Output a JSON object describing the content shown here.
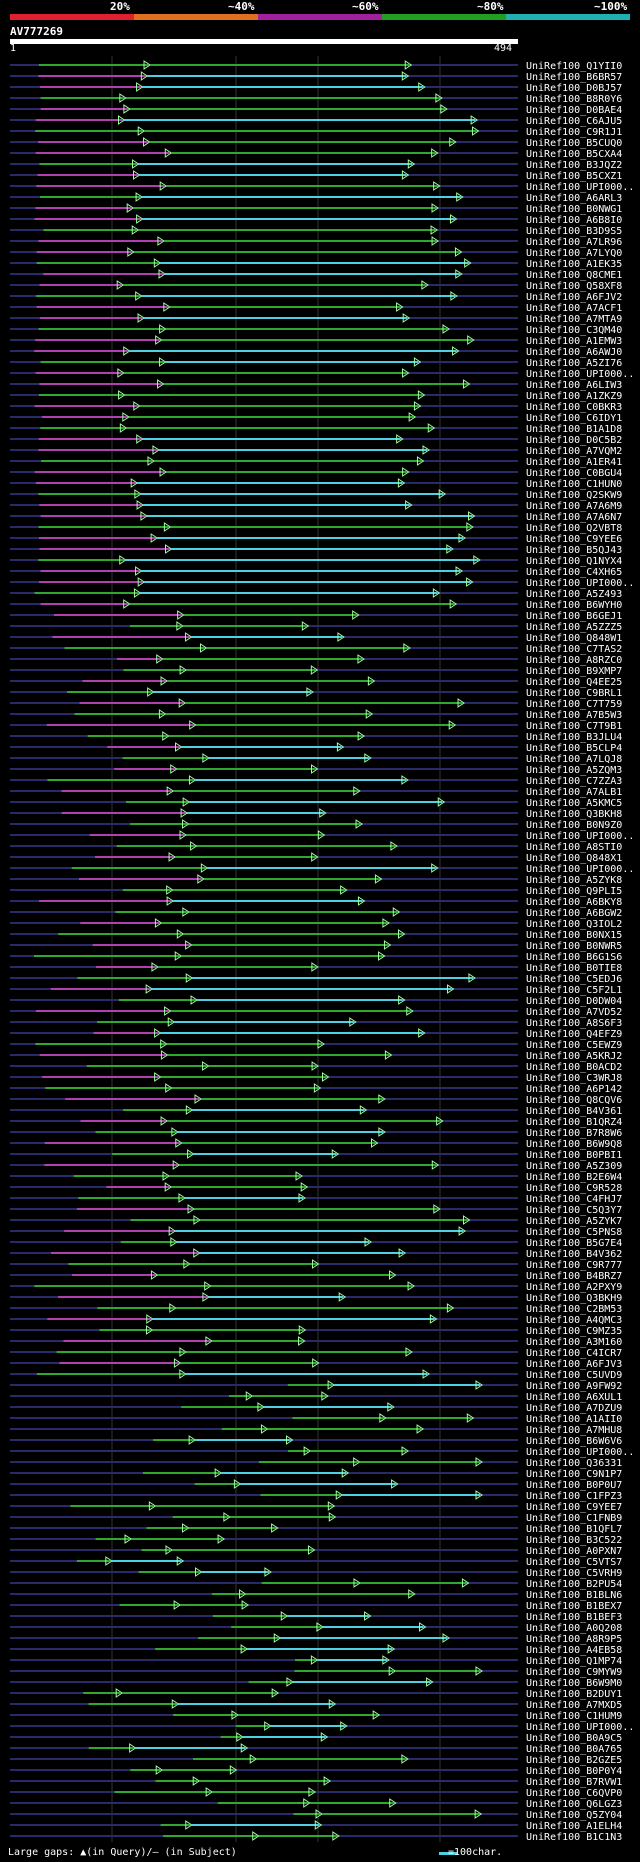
{
  "scale": {
    "labels": [
      "20%",
      "~40%",
      "~60%",
      "~80%",
      "~100%"
    ],
    "colors": [
      "#e0202e",
      "#e07020",
      "#a020a0",
      "#20a020",
      "#20b0b0"
    ]
  },
  "query": {
    "name": "AV777269",
    "start": "1",
    "end": "494"
  },
  "legend": {
    "text": "Large gaps: ▲(in Query)/— (in Subject)",
    "hundred": "=100char."
  },
  "colors": {
    "identity_100": "#4dd0e1",
    "identity_80": "#2ea82e",
    "identity_60": "#b040b0",
    "connector": "#2a2a6a",
    "arrow": "#9eff9e"
  },
  "hits": [
    "UniRef100_Q1YII0",
    "UniRef100_B6BR57",
    "UniRef100_D0BJ57",
    "UniRef100_B8R0Y6",
    "UniRef100_D0BAE4",
    "UniRef100_C6AJU5",
    "UniRef100_C9R1J1",
    "UniRef100_B5CUQ0",
    "UniRef100_B5CXA4",
    "UniRef100_B3JQZ2",
    "UniRef100_B5CXZ1",
    "UniRef100_UPI000..",
    "UniRef100_A6ARL3",
    "UniRef100_B0NWG1",
    "UniRef100_A6B8I0",
    "UniRef100_B3D9S5",
    "UniRef100_A7LR96",
    "UniRef100_A7LYQ0",
    "UniRef100_A1EK35",
    "UniRef100_Q8CME1",
    "UniRef100_Q58XF8",
    "UniRef100_A6FJV2",
    "UniRef100_A7ACF1",
    "UniRef100_A7MTA9",
    "UniRef100_C3QM40",
    "UniRef100_A1EMW3",
    "UniRef100_A6AWJ0",
    "UniRef100_A5ZI76",
    "UniRef100_UPI000..",
    "UniRef100_A6LIW3",
    "UniRef100_A1ZKZ9",
    "UniRef100_C0BKR3",
    "UniRef100_C6IDY1",
    "UniRef100_B1A1D8",
    "UniRef100_D0C5B2",
    "UniRef100_A7VQM2",
    "UniRef100_A1ER41",
    "UniRef100_C0BGU4",
    "UniRef100_C1HUN0",
    "UniRef100_Q2SKW9",
    "UniRef100_A7A6M9",
    "UniRef100_A7A6N7",
    "UniRef100_Q2VBT8",
    "UniRef100_C9YEE6",
    "UniRef100_B5QJ43",
    "UniRef100_Q1NYX4",
    "UniRef100_C4XH65",
    "UniRef100_UPI000..",
    "UniRef100_A5Z493",
    "UniRef100_B6WYH0",
    "UniRef100_B6GEJ1",
    "UniRef100_A5ZZZ5",
    "UniRef100_Q848W1",
    "UniRef100_C7TAS2",
    "UniRef100_A8RZC0",
    "UniRef100_B9XMP7",
    "UniRef100_Q4EE25",
    "UniRef100_C9BRL1",
    "UniRef100_C7T759",
    "UniRef100_A7B5W3",
    "UniRef100_C7T9B1",
    "UniRef100_B3JLU4",
    "UniRef100_B5CLP4",
    "UniRef100_A7LQJ8",
    "UniRef100_A5ZQM3",
    "UniRef100_C7ZZA3",
    "UniRef100_A7ALB1",
    "UniRef100_A5KMC5",
    "UniRef100_Q3BKH8",
    "UniRef100_B0N9Z0",
    "UniRef100_UPI000..",
    "UniRef100_A8STI0",
    "UniRef100_Q848X1",
    "UniRef100_UPI000..",
    "UniRef100_A5ZYK8",
    "UniRef100_Q9PLI5",
    "UniRef100_A6BKY8",
    "UniRef100_A6BGW2",
    "UniRef100_Q3IOL2",
    "UniRef100_B0NX15",
    "UniRef100_B0NWR5",
    "UniRef100_B6G1S6",
    "UniRef100_B0TIE8",
    "UniRef100_C5EDJ6",
    "UniRef100_C5F2L1",
    "UniRef100_D0DW04",
    "UniRef100_A7VD52",
    "UniRef100_A8S6F3",
    "UniRef100_Q4EFZ9",
    "UniRef100_C5EWZ9",
    "UniRef100_A5KRJ2",
    "UniRef100_B0ACD2",
    "UniRef100_C3WRJ8",
    "UniRef100_A6P142",
    "UniRef100_Q8CQV6",
    "UniRef100_B4V361",
    "UniRef100_B1QRZ4",
    "UniRef100_B7R8W6",
    "UniRef100_B6W9Q8",
    "UniRef100_B0PBI1",
    "UniRef100_A5Z309",
    "UniRef100_B2E6W4",
    "UniRef100_C9R528",
    "UniRef100_C4FHJ7",
    "UniRef100_C5Q3Y7",
    "UniRef100_A5ZYK7",
    "UniRef100_C5PNS8",
    "UniRef100_B5G7E4",
    "UniRef100_B4V362",
    "UniRef100_C9R777",
    "UniRef100_B4BRZ7",
    "UniRef100_A2PXY9",
    "UniRef100_Q3BKH9",
    "UniRef100_C2BM53",
    "UniRef100_A4QMC3",
    "UniRef100_C9MZ35",
    "UniRef100_A3M160",
    "UniRef100_C4ICR7",
    "UniRef100_A6FJV3",
    "UniRef100_C5UVD9",
    "UniRef100_A9FW92",
    "UniRef100_A6XUL1",
    "UniRef100_A7DZU9",
    "UniRef100_A1AII0",
    "UniRef100_A7MHU8",
    "UniRef100_B6W6V6",
    "UniRef100_UPI000..",
    "UniRef100_Q36331",
    "UniRef100_C9N1P7",
    "UniRef100_B0P0U7",
    "UniRef100_C1FPZ3",
    "UniRef100_C9YEE7",
    "UniRef100_C1FNB9",
    "UniRef100_B1QFL7",
    "UniRef100_B3C522",
    "UniRef100_A0PXN7",
    "UniRef100_C5VTS7",
    "UniRef100_C5VRH9",
    "UniRef100_B2PU54",
    "UniRef100_B1BLN6",
    "UniRef100_B1BEX7",
    "UniRef100_B1BEF3",
    "UniRef100_A0Q208",
    "UniRef100_A8R9P5",
    "UniRef100_A4EB58",
    "UniRef100_Q1MP74",
    "UniRef100_C9MYW9",
    "UniRef100_B6W9M0",
    "UniRef100_B2DUY1",
    "UniRef100_A7MXD5",
    "UniRef100_C1HUM9",
    "UniRef100_UPI000..",
    "UniRef100_B0A9C5",
    "UniRef100_B0A765",
    "UniRef100_B2GZE5",
    "UniRef100_B0P0Y4",
    "UniRef100_B7RVW1",
    "UniRef100_C6QVP0",
    "UniRef100_Q6LGZ3",
    "UniRef100_Q5ZY04",
    "UniRef100_A1ELH4",
    "UniRef100_B1C1N3"
  ]
}
